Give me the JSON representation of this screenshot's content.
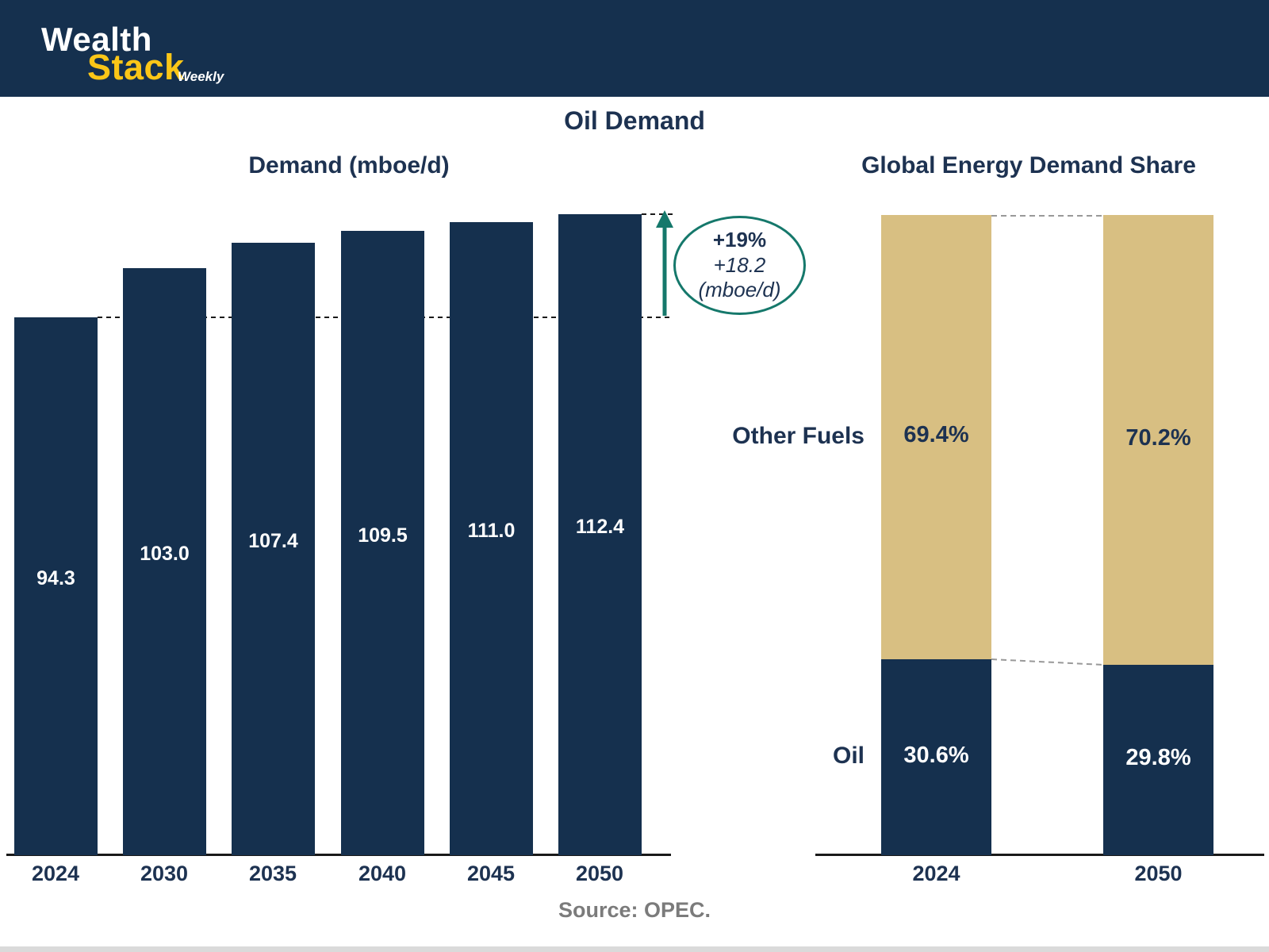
{
  "header": {
    "logo": {
      "wealth": "Wealth",
      "stack": "Stack",
      "weekly": "Weekly"
    }
  },
  "title": "Oil Demand",
  "source": "Source: OPEC.",
  "colors": {
    "navy": "#15304E",
    "tan": "#D8BF82",
    "teal": "#15786B",
    "yellow": "#FBC617",
    "text_navy": "#1D3251",
    "source_gray": "#7B7B7B"
  },
  "chart_data": [
    {
      "type": "bar",
      "title": "Demand (mboe/d)",
      "categories": [
        "2024",
        "2030",
        "2035",
        "2040",
        "2045",
        "2050"
      ],
      "values": [
        94.3,
        103.0,
        107.4,
        109.5,
        111.0,
        112.4
      ],
      "value_labels": [
        "94.3",
        "103.0",
        "107.4",
        "109.5",
        "111.0",
        "112.4"
      ],
      "ylim": [
        0,
        112.4
      ],
      "bar_color": "#15304E",
      "grid": false,
      "legend": "none",
      "annotation": {
        "pct": "+19%",
        "abs": "+18.2",
        "unit": "(mboe/d)"
      }
    },
    {
      "type": "bar",
      "stacked": true,
      "title": "Global Energy Demand Share",
      "categories": [
        "2024",
        "2050"
      ],
      "series": [
        {
          "name": "Oil",
          "values": [
            30.6,
            29.8
          ],
          "labels": [
            "30.6%",
            "29.8%"
          ],
          "color": "#15304E"
        },
        {
          "name": "Other Fuels",
          "values": [
            69.4,
            70.2
          ],
          "labels": [
            "69.4%",
            "70.2%"
          ],
          "color": "#D8BF82"
        }
      ],
      "ylim": [
        0,
        100
      ],
      "grid": false,
      "legend": "none"
    }
  ]
}
